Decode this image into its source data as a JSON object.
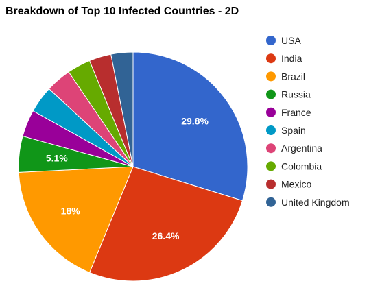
{
  "chart_data": {
    "type": "pie",
    "title": "Breakdown of Top 10 Infected Countries - 2D",
    "legend_position": "right",
    "slices": [
      {
        "label": "USA",
        "value": 29.8,
        "color": "#3366cc",
        "display_label": "29.8%"
      },
      {
        "label": "India",
        "value": 26.4,
        "color": "#dc3912",
        "display_label": "26.4%"
      },
      {
        "label": "Brazil",
        "value": 18.0,
        "color": "#ff9900",
        "display_label": "18%"
      },
      {
        "label": "Russia",
        "value": 5.1,
        "color": "#109618",
        "display_label": "5.1%"
      },
      {
        "label": "France",
        "value": 3.8,
        "color": "#990099",
        "display_label": ""
      },
      {
        "label": "Spain",
        "value": 3.8,
        "color": "#0099c6",
        "display_label": ""
      },
      {
        "label": "Argentina",
        "value": 3.6,
        "color": "#dd4477",
        "display_label": ""
      },
      {
        "label": "Colombia",
        "value": 3.3,
        "color": "#66aa00",
        "display_label": ""
      },
      {
        "label": "Mexico",
        "value": 3.1,
        "color": "#b82e2e",
        "display_label": ""
      },
      {
        "label": "United Kingdom",
        "value": 3.1,
        "color": "#316395",
        "display_label": ""
      }
    ]
  }
}
